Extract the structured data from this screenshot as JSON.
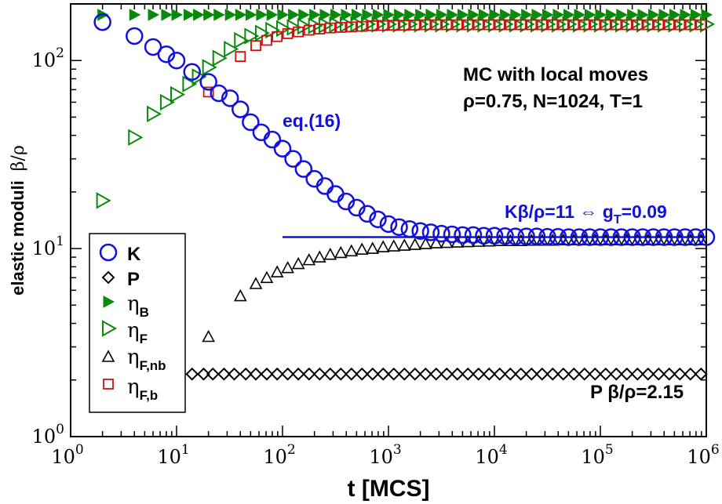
{
  "chart_data": {
    "type": "scatter",
    "scale": {
      "x": "log",
      "y": "log"
    },
    "xlim": [
      1,
      1000000
    ],
    "ylim": [
      1,
      200
    ],
    "xlabel": "t [MCS]",
    "ylabel": "elastic moduli  β/ρ",
    "ylabel_main": "elastic moduli",
    "ylabel_greek": "β/ρ",
    "x_ticks": [
      {
        "base": "10",
        "exp": "0",
        "value": 1
      },
      {
        "base": "10",
        "exp": "1",
        "value": 10
      },
      {
        "base": "10",
        "exp": "2",
        "value": 100
      },
      {
        "base": "10",
        "exp": "3",
        "value": 1000
      },
      {
        "base": "10",
        "exp": "4",
        "value": 10000
      },
      {
        "base": "10",
        "exp": "5",
        "value": 100000
      },
      {
        "base": "10",
        "exp": "6",
        "value": 1000000
      }
    ],
    "y_ticks": [
      {
        "base": "10",
        "exp": "0",
        "value": 1
      },
      {
        "base": "10",
        "exp": "1",
        "value": 10
      },
      {
        "base": "10",
        "exp": "2",
        "value": 100
      }
    ],
    "annotations": {
      "title_line1": "MC with local moves",
      "title_line2": "ρ=0.75, N=1024, T=1",
      "eq_label": "eq.(16)",
      "k_line_label_main": "Kβ/ρ=11 ⇔ g",
      "k_line_label_sub": "T",
      "k_line_label_end": "=0.09",
      "p_label": "P β/ρ=2.15"
    },
    "reference_line": {
      "name": "K plateau",
      "y": 11.5,
      "x_from": 100,
      "x_to": 1000000,
      "color": "#1010e0"
    },
    "legend": {
      "location": "left",
      "entries": [
        {
          "key": "K",
          "label": "K",
          "sub": ""
        },
        {
          "key": "P",
          "label": "",
          "sub": ""
        },
        {
          "key": "etaB",
          "label": "η",
          "sub": "B"
        },
        {
          "key": "etaF",
          "label": "η",
          "sub": "F"
        },
        {
          "key": "etaFnb",
          "label": "η",
          "sub": "F,nb"
        },
        {
          "key": "etaFb",
          "label": "η",
          "sub": "F,b"
        }
      ],
      "P_text": "P"
    },
    "series": [
      {
        "key": "K",
        "name": "K",
        "marker": "circle-open",
        "color": "#1010e0",
        "x": [
          2,
          4,
          6,
          8,
          10,
          14,
          20,
          25,
          32,
          40,
          50,
          63,
          80,
          100,
          126,
          158,
          200,
          251,
          316,
          398,
          501,
          631,
          794,
          1000,
          1260,
          1580,
          2000,
          2510,
          3160,
          3980,
          5010,
          6310,
          7940,
          10000,
          12600,
          15800,
          20000,
          25100,
          31600,
          39800,
          50100,
          63100,
          79400,
          100000,
          126000,
          158000,
          200000,
          251000,
          316000,
          398000,
          501000,
          631000,
          794000,
          1000000
        ],
        "y": [
          160,
          135,
          118,
          108,
          100,
          87,
          77,
          67,
          63,
          55,
          47,
          41.5,
          38,
          34,
          30,
          26.5,
          23.5,
          21.5,
          19.5,
          17.8,
          16.5,
          15.3,
          14.3,
          13.5,
          13.0,
          12.7,
          12.4,
          12.2,
          12.0,
          11.9,
          11.8,
          11.8,
          11.7,
          11.7,
          11.65,
          11.6,
          11.6,
          11.6,
          11.55,
          11.55,
          11.5,
          11.5,
          11.5,
          11.5,
          11.5,
          11.5,
          11.5,
          11.5,
          11.5,
          11.5,
          11.5,
          11.5,
          11.5,
          11.5
        ]
      },
      {
        "key": "P",
        "name": "P",
        "marker": "diamond-open",
        "color": "#000000",
        "x": [
          14,
          18,
          22,
          28,
          35,
          45,
          56,
          71,
          89,
          112,
          141,
          178,
          224,
          282,
          355,
          447,
          562,
          708,
          891,
          1122,
          1413,
          1778,
          2239,
          2818,
          3548,
          4467,
          5623,
          7079,
          8913,
          11220,
          14130,
          17780,
          22390,
          28180,
          35480,
          44670,
          56230,
          70790,
          89130,
          112200,
          141300,
          177800,
          223900,
          281800,
          354800,
          446700,
          562300,
          707900,
          891300
        ],
        "y": [
          2.15,
          2.15,
          2.15,
          2.15,
          2.15,
          2.15,
          2.15,
          2.15,
          2.15,
          2.15,
          2.15,
          2.15,
          2.15,
          2.15,
          2.15,
          2.15,
          2.15,
          2.15,
          2.15,
          2.15,
          2.15,
          2.15,
          2.15,
          2.15,
          2.15,
          2.15,
          2.15,
          2.15,
          2.15,
          2.15,
          2.15,
          2.15,
          2.15,
          2.15,
          2.15,
          2.15,
          2.15,
          2.15,
          2.15,
          2.15,
          2.15,
          2.15,
          2.15,
          2.15,
          2.15,
          2.15,
          2.15,
          2.15,
          2.15
        ]
      },
      {
        "key": "etaB",
        "name": "ηB",
        "marker": "triangle-right-filled",
        "color": "#0a8a0a",
        "x": [
          2,
          4,
          6,
          8,
          10,
          13,
          16,
          20,
          25,
          32,
          40,
          50,
          63,
          79,
          100,
          126,
          158,
          200,
          251,
          316,
          398,
          501,
          631,
          794,
          1000,
          1260,
          1580,
          2000,
          2510,
          3160,
          3980,
          5010,
          6310,
          7940,
          10000,
          12600,
          15800,
          20000,
          25100,
          31600,
          39800,
          50100,
          63100,
          79400,
          100000,
          126000,
          158000,
          200000,
          251000,
          316000,
          398000,
          501000,
          631000,
          794000,
          1000000
        ],
        "y": [
          175,
          175,
          175,
          175,
          175,
          175,
          175,
          175,
          175,
          175,
          175,
          175,
          175,
          175,
          175,
          175,
          175,
          175,
          175,
          175,
          175,
          175,
          175,
          175,
          175,
          175,
          175,
          175,
          175,
          175,
          175,
          175,
          175,
          175,
          175,
          175,
          175,
          175,
          175,
          175,
          175,
          175,
          175,
          175,
          175,
          175,
          175,
          175,
          175,
          175,
          175,
          175,
          175,
          175,
          175
        ]
      },
      {
        "key": "etaF",
        "name": "ηF",
        "marker": "triangle-right-open",
        "color": "#0a8a0a",
        "x": [
          2,
          4,
          6,
          8,
          10,
          13,
          16,
          20,
          25,
          32,
          40,
          50,
          63,
          79,
          100,
          126,
          158,
          200,
          251,
          316,
          398,
          501,
          631,
          794,
          1000,
          1260,
          1580,
          2000,
          2510,
          3160,
          3980,
          5010,
          6310,
          7940,
          10000,
          12600,
          15800,
          20000,
          25100,
          31600,
          39800,
          50100,
          63100,
          79400,
          100000,
          126000,
          158000,
          200000,
          251000,
          316000,
          398000,
          501000,
          631000,
          794000,
          1000000
        ],
        "y": [
          18,
          39,
          52,
          60,
          66,
          75,
          82,
          92,
          103,
          115,
          128,
          135,
          140,
          145,
          148,
          150,
          152,
          153,
          154,
          155,
          155.5,
          156,
          156,
          156,
          156,
          156,
          156,
          156,
          156,
          156,
          156,
          156,
          156,
          156,
          156,
          156,
          156,
          156,
          156,
          156,
          156,
          156,
          156,
          156,
          156,
          156,
          156,
          156,
          156,
          156,
          156,
          156,
          156,
          156,
          156
        ]
      },
      {
        "key": "etaFnb",
        "name": "ηF,nb",
        "marker": "triangle-up-open",
        "color": "#000000",
        "x": [
          20,
          40,
          56,
          71,
          89,
          112,
          141,
          178,
          224,
          282,
          355,
          447,
          562,
          708,
          891,
          1122,
          1413,
          1778,
          2239,
          2818,
          3548,
          4467,
          5623,
          7079,
          8913,
          11220,
          14130,
          17780,
          22390,
          28180,
          35480,
          44670,
          56230,
          70790,
          89130,
          112200,
          141300,
          177800,
          223900,
          281800,
          354800,
          446700,
          562300,
          707900,
          891300
        ],
        "y": [
          3.4,
          5.6,
          6.5,
          7.0,
          7.5,
          7.9,
          8.3,
          8.7,
          9.0,
          9.3,
          9.5,
          9.7,
          9.9,
          10.0,
          10.2,
          10.3,
          10.4,
          10.5,
          10.6,
          10.7,
          10.75,
          10.8,
          10.85,
          10.9,
          10.95,
          11.0,
          11.0,
          11.0,
          11.05,
          11.05,
          11.05,
          11.1,
          11.1,
          11.1,
          11.1,
          11.1,
          11.1,
          11.1,
          11.1,
          11.1,
          11.1,
          11.1,
          11.1,
          11.1,
          11.1
        ]
      },
      {
        "key": "etaFb",
        "name": "ηF,b",
        "marker": "square-open",
        "color": "#d01010",
        "x": [
          20,
          40,
          56,
          71,
          89,
          112,
          141,
          178,
          224,
          282,
          355,
          447,
          562,
          708,
          891,
          1122,
          1413,
          1778,
          2239,
          2818,
          3548,
          4467,
          5623,
          7079,
          8913,
          11220,
          14130,
          17780,
          22390,
          28180,
          35480,
          44670,
          56230,
          70790,
          89130,
          112200,
          141300,
          177800,
          223900,
          281800,
          354800,
          446700,
          562300,
          707900,
          891300
        ],
        "y": [
          68,
          105,
          120,
          128,
          134,
          139,
          142,
          145,
          147,
          149,
          150,
          151,
          152,
          153,
          153.5,
          154,
          154,
          154.5,
          155,
          155,
          155,
          155,
          155,
          155,
          155,
          155,
          155,
          155,
          155,
          155,
          155,
          155,
          155,
          155,
          155,
          155,
          155,
          155,
          155,
          155,
          155,
          155,
          155,
          155,
          155
        ]
      }
    ]
  }
}
